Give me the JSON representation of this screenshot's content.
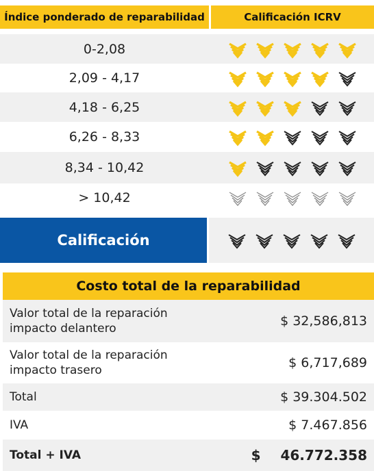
{
  "rating_table": {
    "headers": [
      "Índice ponderado de reparabilidad",
      "Calificación ICRV"
    ],
    "rows": [
      {
        "range": "0-2,08",
        "rating": 5
      },
      {
        "range": "2,09 - 4,17",
        "rating": 4
      },
      {
        "range": "4,18 - 6,25",
        "rating": 3
      },
      {
        "range": "6,26 - 8,33",
        "rating": 2
      },
      {
        "range": "8,34 - 10,42",
        "rating": 1
      },
      {
        "range": "> 10,42",
        "rating": 0
      }
    ],
    "max_rating": 5,
    "result": {
      "label": "Calificación",
      "rating": 0
    }
  },
  "cost_table": {
    "title": "Costo total de la reparabilidad",
    "rows": [
      {
        "label": "Valor total de la reparación impacto delantero",
        "amount": "$ 32,586,813"
      },
      {
        "label": "Valor total de la reparación impacto trasero",
        "amount": "$ 6,717,689"
      },
      {
        "label": "Total",
        "amount": "$ 39.304.502"
      },
      {
        "label": "IVA",
        "amount": "$ 7.467.856"
      },
      {
        "label": "Total + IVA",
        "amount": "$ 46.772.358"
      }
    ]
  }
}
